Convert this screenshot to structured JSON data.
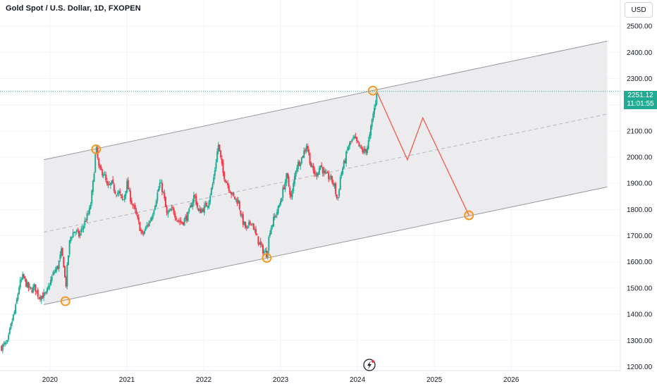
{
  "header": {
    "title": "Gold Spot / U.S. Dollar, 1D, FXOPEN",
    "currency": "USD"
  },
  "last_price": {
    "value": "2251.12",
    "countdown": "11:01:55",
    "color": "#22ab94"
  },
  "colors": {
    "up": "#22ab94",
    "down": "#f23645",
    "channel_line": "#9598a1",
    "channel_fill": "#e9e9ec",
    "midline": "#b2b5be",
    "projection": "#f05a4a",
    "marker": "#f7931a"
  },
  "icons": {
    "watermark": "tradingview-lightning-icon"
  },
  "chart_data": {
    "type": "candlestick",
    "title": "Gold Spot / U.S. Dollar, 1D, FXOPEN",
    "y_axis": {
      "ticks": [
        1200,
        1300,
        1400,
        1500,
        1600,
        1700,
        1800,
        1900,
        2000,
        2100,
        2200,
        2300,
        2400,
        2500
      ],
      "tick_labels": [
        "1200.00",
        "1300.00",
        "1400.00",
        "1500.00",
        "1600.00",
        "1700.00",
        "1800.00",
        "1900.00",
        "2000.00",
        "2100.00",
        "2200.00",
        "2300.00",
        "2400.00",
        "2500.00"
      ],
      "range": [
        1185,
        2600
      ],
      "side": "right"
    },
    "x_axis": {
      "ticks": [
        2020,
        2021,
        2022,
        2023,
        2024,
        2025,
        2026
      ],
      "tick_labels": [
        "2020",
        "2021",
        "2022",
        "2023",
        "2024",
        "2025",
        "2026"
      ],
      "range": [
        2019.35,
        2027.42
      ]
    },
    "price_path": [
      [
        2019.37,
        1275
      ],
      [
        2019.45,
        1290
      ],
      [
        2019.48,
        1340
      ],
      [
        2019.52,
        1390
      ],
      [
        2019.55,
        1420
      ],
      [
        2019.6,
        1510
      ],
      [
        2019.65,
        1545
      ],
      [
        2019.7,
        1510
      ],
      [
        2019.75,
        1490
      ],
      [
        2019.8,
        1505
      ],
      [
        2019.85,
        1470
      ],
      [
        2019.9,
        1470
      ],
      [
        2019.95,
        1475
      ],
      [
        2020.0,
        1520
      ],
      [
        2020.05,
        1560
      ],
      [
        2020.1,
        1580
      ],
      [
        2020.15,
        1640
      ],
      [
        2020.19,
        1570
      ],
      [
        2020.2,
        1480
      ],
      [
        2020.23,
        1600
      ],
      [
        2020.26,
        1690
      ],
      [
        2020.32,
        1720
      ],
      [
        2020.38,
        1700
      ],
      [
        2020.45,
        1750
      ],
      [
        2020.52,
        1800
      ],
      [
        2020.56,
        1900
      ],
      [
        2020.6,
        2040
      ],
      [
        2020.64,
        1950
      ],
      [
        2020.7,
        1940
      ],
      [
        2020.75,
        1880
      ],
      [
        2020.8,
        1900
      ],
      [
        2020.85,
        1870
      ],
      [
        2020.9,
        1860
      ],
      [
        2020.95,
        1830
      ],
      [
        2021.0,
        1900
      ],
      [
        2021.05,
        1840
      ],
      [
        2021.12,
        1780
      ],
      [
        2021.2,
        1700
      ],
      [
        2021.25,
        1730
      ],
      [
        2021.32,
        1770
      ],
      [
        2021.38,
        1840
      ],
      [
        2021.43,
        1900
      ],
      [
        2021.47,
        1870
      ],
      [
        2021.52,
        1780
      ],
      [
        2021.6,
        1800
      ],
      [
        2021.66,
        1760
      ],
      [
        2021.72,
        1750
      ],
      [
        2021.8,
        1780
      ],
      [
        2021.88,
        1860
      ],
      [
        2021.93,
        1790
      ],
      [
        2021.98,
        1800
      ],
      [
        2022.05,
        1820
      ],
      [
        2022.12,
        1900
      ],
      [
        2022.19,
        2050
      ],
      [
        2022.25,
        1940
      ],
      [
        2022.32,
        1890
      ],
      [
        2022.38,
        1850
      ],
      [
        2022.45,
        1830
      ],
      [
        2022.5,
        1760
      ],
      [
        2022.56,
        1720
      ],
      [
        2022.62,
        1760
      ],
      [
        2022.68,
        1700
      ],
      [
        2022.74,
        1660
      ],
      [
        2022.78,
        1640
      ],
      [
        2022.82,
        1630
      ],
      [
        2022.86,
        1720
      ],
      [
        2022.92,
        1770
      ],
      [
        2022.98,
        1810
      ],
      [
        2023.02,
        1860
      ],
      [
        2023.08,
        1930
      ],
      [
        2023.14,
        1840
      ],
      [
        2023.2,
        1960
      ],
      [
        2023.28,
        2000
      ],
      [
        2023.34,
        2050
      ],
      [
        2023.4,
        1960
      ],
      [
        2023.46,
        1930
      ],
      [
        2023.52,
        1970
      ],
      [
        2023.58,
        1930
      ],
      [
        2023.65,
        1920
      ],
      [
        2023.7,
        1890
      ],
      [
        2023.74,
        1830
      ],
      [
        2023.78,
        1930
      ],
      [
        2023.83,
        1980
      ],
      [
        2023.88,
        2040
      ],
      [
        2023.92,
        2060
      ],
      [
        2023.96,
        2070
      ],
      [
        2024.02,
        2040
      ],
      [
        2024.08,
        2020
      ],
      [
        2024.12,
        2030
      ],
      [
        2024.16,
        2080
      ],
      [
        2024.2,
        2160
      ],
      [
        2024.23,
        2200
      ],
      [
        2024.25,
        2251
      ]
    ],
    "channel": {
      "upper": [
        [
          2019.92,
          1990
        ],
        [
          2027.25,
          2443
        ]
      ],
      "lower": [
        [
          2019.92,
          1437
        ],
        [
          2027.25,
          1886
        ]
      ]
    },
    "projection": [
      [
        2024.25,
        2251
      ],
      [
        2024.65,
        1990
      ],
      [
        2024.85,
        2150
      ],
      [
        2025.45,
        1778
      ]
    ],
    "touch_points": [
      [
        2020.2,
        1450
      ],
      [
        2020.6,
        2030
      ],
      [
        2022.82,
        1615
      ],
      [
        2024.2,
        2254
      ],
      [
        2025.45,
        1778
      ]
    ],
    "last_price_line": 2251.12
  }
}
